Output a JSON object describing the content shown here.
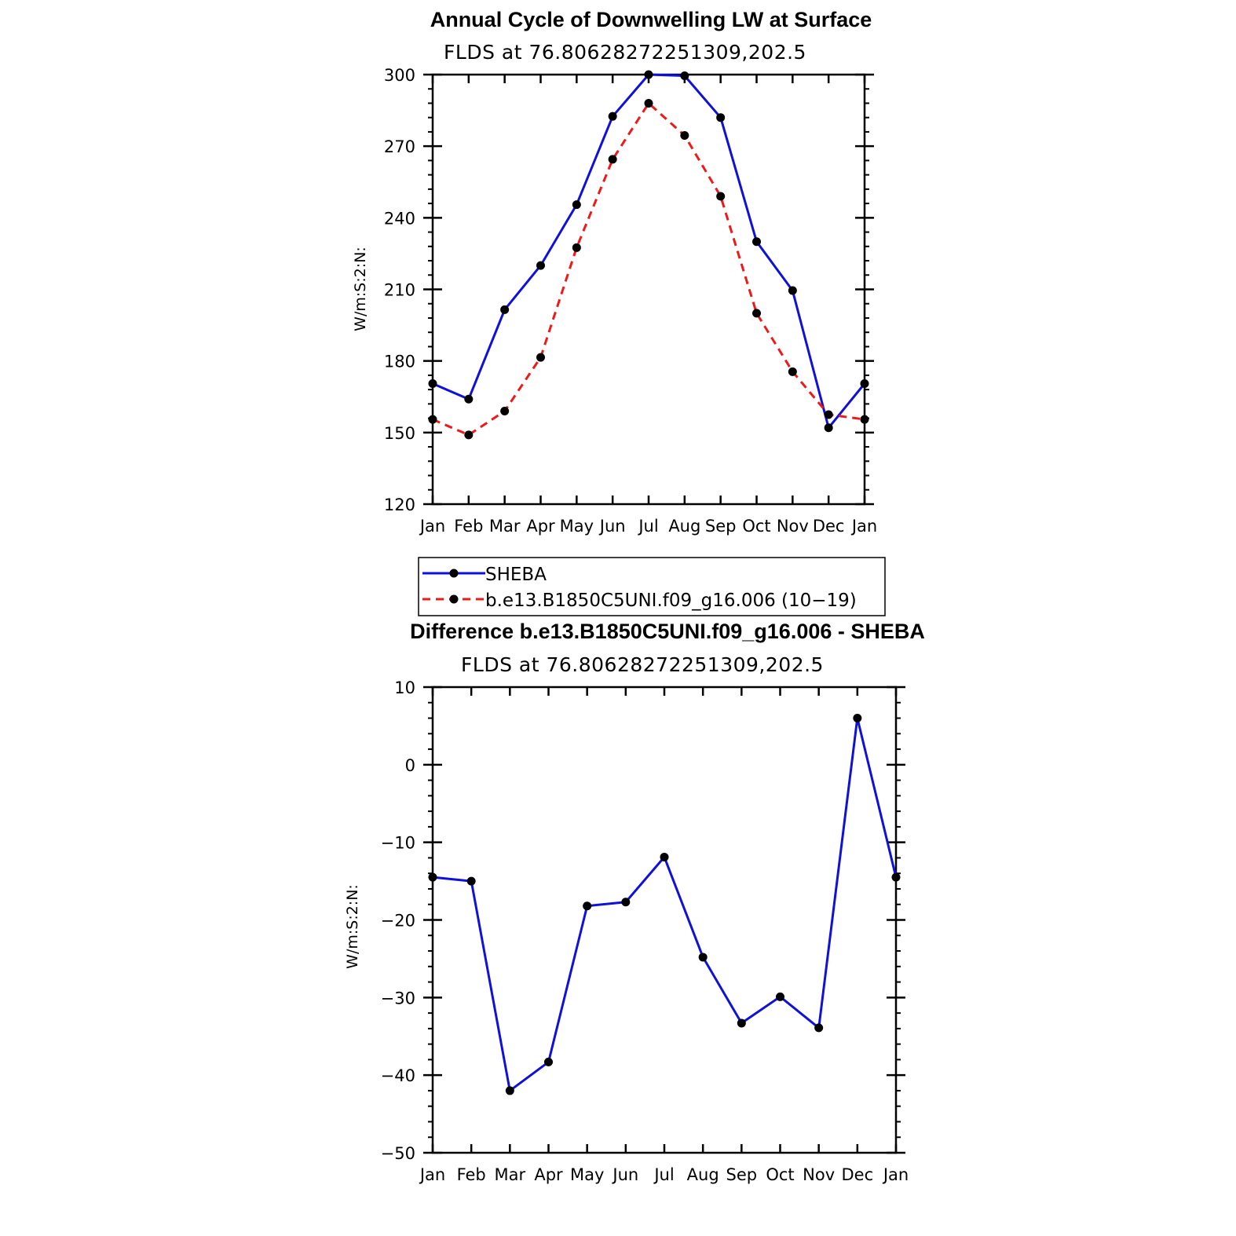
{
  "colors": {
    "sheba": "#1010dd",
    "model": "#ee1a1a",
    "marker": "#000000",
    "axis": "#000000",
    "background": "#ffffff"
  },
  "chart_data": [
    {
      "type": "line",
      "title": "Annual Cycle of Downwelling LW at Surface",
      "subtitle": "FLDS at 76.80628272251309,202.5",
      "ylabel": "W/m:S:2:N:",
      "xlabel": "",
      "categories": [
        "Jan",
        "Feb",
        "Mar",
        "Apr",
        "May",
        "Jun",
        "Jul",
        "Aug",
        "Sep",
        "Oct",
        "Nov",
        "Dec",
        "Jan"
      ],
      "ylim": [
        120,
        300
      ],
      "yticks": [
        120,
        150,
        180,
        210,
        240,
        270,
        300
      ],
      "series": [
        {
          "name": "SHEBA",
          "style": "solid",
          "color": "#1010dd",
          "values": [
            170.5,
            164,
            201.5,
            220,
            245.5,
            282.5,
            300,
            299.5,
            282,
            230,
            209.5,
            152,
            170.5
          ]
        },
        {
          "name": "b.e13.B1850C5UNI.f09_g16.006 (10−19)",
          "style": "dashed",
          "color": "#ee1a1a",
          "values": [
            155.5,
            149,
            159,
            181.5,
            227.5,
            264.5,
            288,
            274.5,
            249,
            200,
            175.5,
            157.5,
            155.5
          ]
        }
      ],
      "legend": "below",
      "grid": false
    },
    {
      "type": "line",
      "title": "Difference b.e13.B1850C5UNI.f09_g16.006 - SHEBA",
      "subtitle": "FLDS at 76.80628272251309,202.5",
      "ylabel": "W/m:S:2:N:",
      "xlabel": "",
      "categories": [
        "Jan",
        "Feb",
        "Mar",
        "Apr",
        "May",
        "Jun",
        "Jul",
        "Aug",
        "Sep",
        "Oct",
        "Nov",
        "Dec",
        "Jan"
      ],
      "ylim": [
        -50,
        10
      ],
      "yticks": [
        -50,
        -40,
        -30,
        -20,
        -10,
        0,
        10
      ],
      "ytick_labels": [
        "−50",
        "−40",
        "−30",
        "−20",
        "−10",
        "0",
        "10"
      ],
      "series": [
        {
          "style": "solid",
          "color": "#1010dd",
          "values": [
            -14.5,
            -15,
            -42,
            -38.3,
            -18.2,
            -17.7,
            -11.9,
            -24.8,
            -33.3,
            -29.9,
            -33.9,
            6,
            -14.5
          ]
        }
      ],
      "grid": false
    }
  ]
}
